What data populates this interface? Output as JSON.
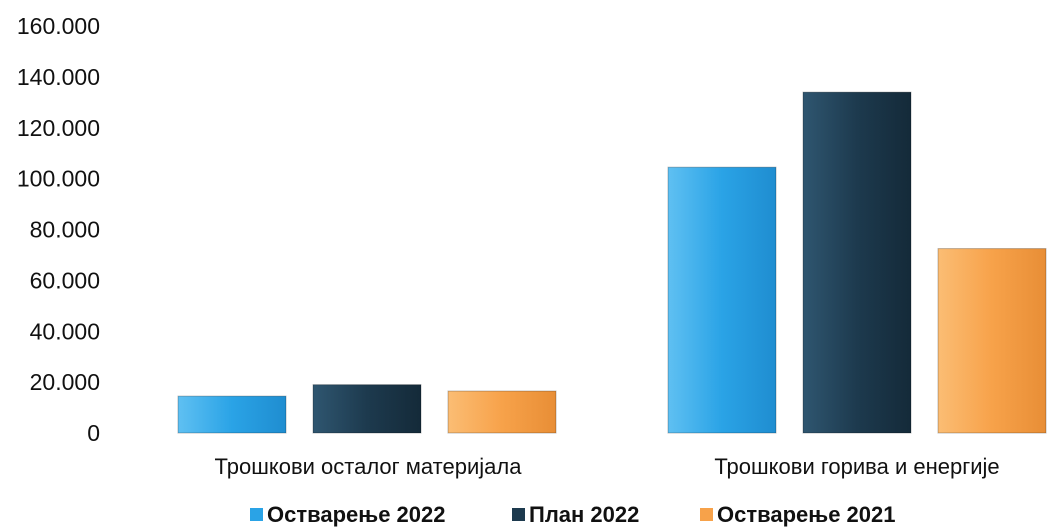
{
  "chart_data": {
    "type": "bar",
    "title": "",
    "xlabel": "",
    "ylabel": "",
    "ylim": [
      0,
      160000
    ],
    "yticks": [
      0,
      20000,
      40000,
      60000,
      80000,
      100000,
      120000,
      140000,
      160000
    ],
    "ytick_labels": [
      "0",
      "20.000",
      "40.000",
      "60.000",
      "80.000",
      "100.000",
      "120.000",
      "140.000",
      "160.000"
    ],
    "categories": [
      "Трошкови осталог материјала",
      "Трошкови горива и енергије"
    ],
    "series": [
      {
        "name": "Остварење 2022",
        "color": "#2aa3e6",
        "values": [
          14500,
          104500
        ]
      },
      {
        "name": "План 2022",
        "color": "#1d3a4e",
        "values": [
          19000,
          134000
        ]
      },
      {
        "name": "Остварење 2021",
        "color": "#f7a24a",
        "values": [
          16500,
          72500
        ]
      }
    ],
    "grid": false,
    "legend_position": "bottom"
  }
}
